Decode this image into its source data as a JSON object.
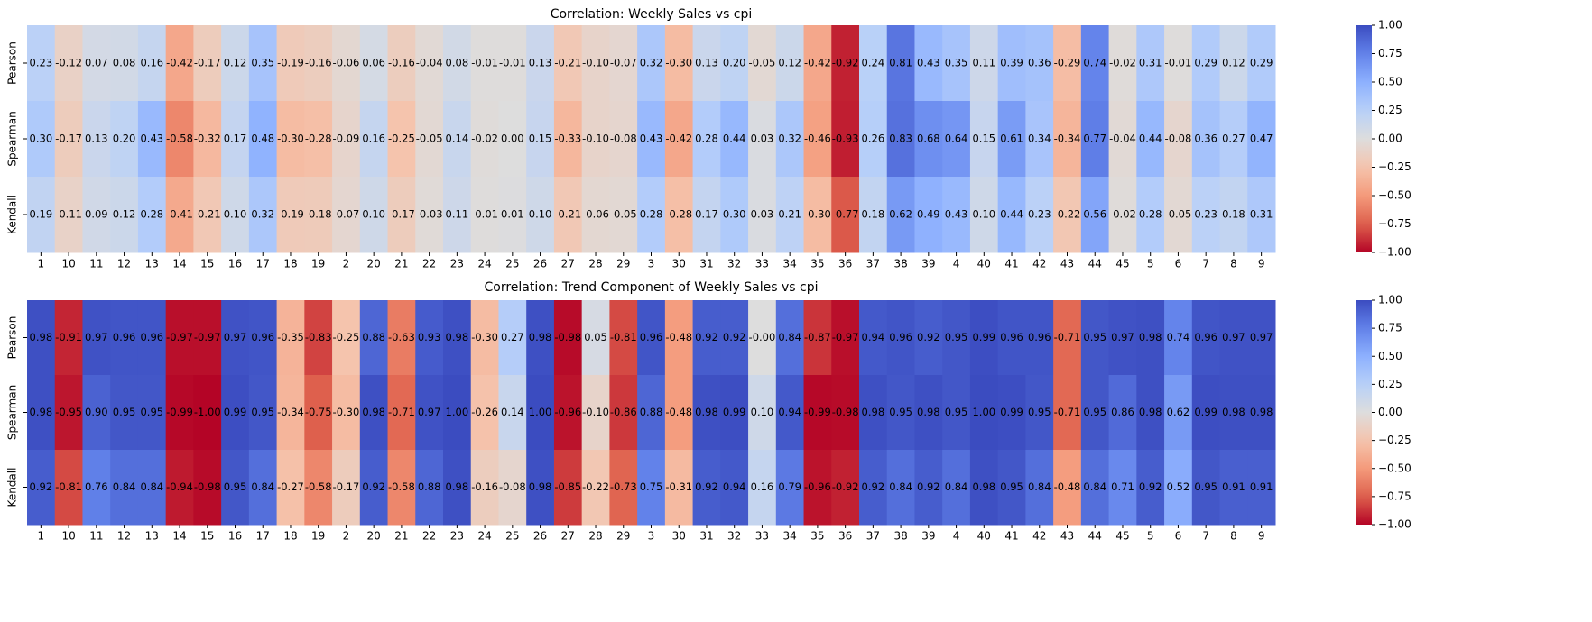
{
  "chart_data": [
    {
      "type": "heatmap",
      "title": "Correlation: Weekly Sales vs cpi",
      "colormap": "coolwarm_r",
      "x": [
        "1",
        "10",
        "11",
        "12",
        "13",
        "14",
        "15",
        "16",
        "17",
        "18",
        "19",
        "2",
        "20",
        "21",
        "22",
        "23",
        "24",
        "25",
        "26",
        "27",
        "28",
        "29",
        "3",
        "30",
        "31",
        "32",
        "33",
        "34",
        "35",
        "36",
        "37",
        "38",
        "39",
        "4",
        "40",
        "41",
        "42",
        "43",
        "44",
        "45",
        "5",
        "6",
        "7",
        "8",
        "9"
      ],
      "y": [
        "Pearson",
        "Spearman",
        "Kendall"
      ],
      "values": [
        [
          0.23,
          -0.12,
          0.07,
          0.08,
          0.16,
          -0.42,
          -0.17,
          0.12,
          0.35,
          -0.19,
          -0.16,
          -0.06,
          0.06,
          -0.16,
          -0.04,
          0.08,
          -0.01,
          -0.01,
          0.13,
          -0.21,
          -0.1,
          -0.07,
          0.32,
          -0.3,
          0.13,
          0.2,
          -0.05,
          0.12,
          -0.42,
          -0.92,
          0.24,
          0.81,
          0.43,
          0.35,
          0.11,
          0.39,
          0.36,
          -0.29,
          0.74,
          -0.02,
          0.31,
          -0.01,
          0.29,
          0.12,
          0.29
        ],
        [
          0.3,
          -0.17,
          0.13,
          0.2,
          0.43,
          -0.58,
          -0.32,
          0.17,
          0.48,
          -0.3,
          -0.28,
          -0.09,
          0.16,
          -0.25,
          -0.05,
          0.14,
          -0.02,
          0.0,
          0.15,
          -0.33,
          -0.1,
          -0.08,
          0.43,
          -0.42,
          0.28,
          0.44,
          0.03,
          0.32,
          -0.46,
          -0.93,
          0.26,
          0.83,
          0.68,
          0.64,
          0.15,
          0.61,
          0.34,
          -0.34,
          0.77,
          -0.04,
          0.44,
          -0.08,
          0.36,
          0.27,
          0.47
        ],
        [
          0.19,
          -0.11,
          0.09,
          0.12,
          0.28,
          -0.41,
          -0.21,
          0.1,
          0.32,
          -0.19,
          -0.18,
          -0.07,
          0.1,
          -0.17,
          -0.03,
          0.11,
          -0.01,
          0.01,
          0.1,
          -0.21,
          -0.06,
          -0.05,
          0.28,
          -0.28,
          0.17,
          0.3,
          0.03,
          0.21,
          -0.3,
          -0.77,
          0.18,
          0.62,
          0.49,
          0.43,
          0.1,
          0.44,
          0.23,
          -0.22,
          0.56,
          -0.02,
          0.28,
          -0.05,
          0.23,
          0.18,
          0.31
        ]
      ],
      "value_labels": [
        [
          "0.23",
          "-0.12",
          "0.07",
          "0.08",
          "0.16",
          "-0.42",
          "-0.17",
          "0.12",
          "0.35",
          "-0.19",
          "-0.16",
          "-0.06",
          "0.06",
          "-0.16",
          "-0.04",
          "0.08",
          "-0.01",
          "-0.01",
          "0.13",
          "-0.21",
          "-0.10",
          "-0.07",
          "0.32",
          "-0.30",
          "0.13",
          "0.20",
          "-0.05",
          "0.12",
          "-0.42",
          "-0.92",
          "0.24",
          "0.81",
          "0.43",
          "0.35",
          "0.11",
          "0.39",
          "0.36",
          "-0.29",
          "0.74",
          "-0.02",
          "0.31",
          "-0.01",
          "0.29",
          "0.12",
          "0.29"
        ],
        [
          "0.30",
          "-0.17",
          "0.13",
          "0.20",
          "0.43",
          "-0.58",
          "-0.32",
          "0.17",
          "0.48",
          "-0.30",
          "-0.28",
          "-0.09",
          "0.16",
          "-0.25",
          "-0.05",
          "0.14",
          "-0.02",
          "0.00",
          "0.15",
          "-0.33",
          "-0.10",
          "-0.08",
          "0.43",
          "-0.42",
          "0.28",
          "0.44",
          "0.03",
          "0.32",
          "-0.46",
          "-0.93",
          "0.26",
          "0.83",
          "0.68",
          "0.64",
          "0.15",
          "0.61",
          "0.34",
          "-0.34",
          "0.77",
          "-0.04",
          "0.44",
          "-0.08",
          "0.36",
          "0.27",
          "0.47"
        ],
        [
          "0.19",
          "-0.11",
          "0.09",
          "0.12",
          "0.28",
          "-0.41",
          "-0.21",
          "0.10",
          "0.32",
          "-0.19",
          "-0.18",
          "-0.07",
          "0.10",
          "-0.17",
          "-0.03",
          "0.11",
          "-0.01",
          "0.01",
          "0.10",
          "-0.21",
          "-0.06",
          "-0.05",
          "0.28",
          "-0.28",
          "0.17",
          "0.30",
          "0.03",
          "0.21",
          "-0.30",
          "-0.77",
          "0.18",
          "0.62",
          "0.49",
          "0.43",
          "0.10",
          "0.44",
          "0.23",
          "-0.22",
          "0.56",
          "-0.02",
          "0.28",
          "-0.05",
          "0.23",
          "0.18",
          "0.31"
        ]
      ],
      "clim": [
        -1,
        1
      ],
      "cticks": [
        {
          "value": -1,
          "label": "−1.00"
        },
        {
          "value": -0.75,
          "label": "−0.75"
        },
        {
          "value": -0.5,
          "label": "−0.50"
        },
        {
          "value": -0.25,
          "label": "−0.25"
        },
        {
          "value": 0,
          "label": "0.00"
        },
        {
          "value": 0.25,
          "label": "0.25"
        },
        {
          "value": 0.5,
          "label": "0.50"
        },
        {
          "value": 0.75,
          "label": "0.75"
        },
        {
          "value": 1,
          "label": "1.00"
        }
      ]
    },
    {
      "type": "heatmap",
      "title": "Correlation: Trend Component of Weekly Sales vs cpi",
      "colormap": "coolwarm_r",
      "x": [
        "1",
        "10",
        "11",
        "12",
        "13",
        "14",
        "15",
        "16",
        "17",
        "18",
        "19",
        "2",
        "20",
        "21",
        "22",
        "23",
        "24",
        "25",
        "26",
        "27",
        "28",
        "29",
        "3",
        "30",
        "31",
        "32",
        "33",
        "34",
        "35",
        "36",
        "37",
        "38",
        "39",
        "4",
        "40",
        "41",
        "42",
        "43",
        "44",
        "45",
        "5",
        "6",
        "7",
        "8",
        "9"
      ],
      "y": [
        "Pearson",
        "Spearman",
        "Kendall"
      ],
      "values": [
        [
          0.98,
          -0.91,
          0.97,
          0.96,
          0.96,
          -0.97,
          -0.97,
          0.97,
          0.96,
          -0.35,
          -0.83,
          -0.25,
          0.88,
          -0.63,
          0.93,
          0.98,
          -0.3,
          0.27,
          0.98,
          -0.98,
          0.05,
          -0.81,
          0.96,
          -0.48,
          0.92,
          0.92,
          0,
          0.84,
          -0.87,
          -0.97,
          0.94,
          0.96,
          0.92,
          0.95,
          0.99,
          0.96,
          0.96,
          -0.71,
          0.95,
          0.97,
          0.98,
          0.74,
          0.96,
          0.97,
          0.97
        ],
        [
          0.98,
          -0.95,
          0.9,
          0.95,
          0.95,
          -0.99,
          -1.0,
          0.99,
          0.95,
          -0.34,
          -0.75,
          -0.3,
          0.98,
          -0.71,
          0.97,
          1.0,
          -0.26,
          0.14,
          1.0,
          -0.96,
          -0.1,
          -0.86,
          0.88,
          -0.48,
          0.98,
          0.99,
          0.1,
          0.94,
          -0.99,
          -0.98,
          0.98,
          0.95,
          0.98,
          0.95,
          1.0,
          0.99,
          0.95,
          -0.71,
          0.95,
          0.86,
          0.98,
          0.62,
          0.99,
          0.98,
          0.98
        ],
        [
          0.92,
          -0.81,
          0.76,
          0.84,
          0.84,
          -0.94,
          -0.98,
          0.95,
          0.84,
          -0.27,
          -0.58,
          -0.17,
          0.92,
          -0.58,
          0.88,
          0.98,
          -0.16,
          -0.08,
          0.98,
          -0.85,
          -0.22,
          -0.73,
          0.75,
          -0.31,
          0.92,
          0.94,
          0.16,
          0.79,
          -0.96,
          -0.92,
          0.92,
          0.84,
          0.92,
          0.84,
          0.98,
          0.95,
          0.84,
          -0.48,
          0.84,
          0.71,
          0.92,
          0.52,
          0.95,
          0.91,
          0.91
        ]
      ],
      "value_labels": [
        [
          "0.98",
          "-0.91",
          "0.97",
          "0.96",
          "0.96",
          "-0.97",
          "-0.97",
          "0.97",
          "0.96",
          "-0.35",
          "-0.83",
          "-0.25",
          "0.88",
          "-0.63",
          "0.93",
          "0.98",
          "-0.30",
          "0.27",
          "0.98",
          "-0.98",
          "0.05",
          "-0.81",
          "0.96",
          "-0.48",
          "0.92",
          "0.92",
          "-0.00",
          "0.84",
          "-0.87",
          "-0.97",
          "0.94",
          "0.96",
          "0.92",
          "0.95",
          "0.99",
          "0.96",
          "0.96",
          "-0.71",
          "0.95",
          "0.97",
          "0.98",
          "0.74",
          "0.96",
          "0.97",
          "0.97"
        ],
        [
          "0.98",
          "-0.95",
          "0.90",
          "0.95",
          "0.95",
          "-0.99",
          "-1.00",
          "0.99",
          "0.95",
          "-0.34",
          "-0.75",
          "-0.30",
          "0.98",
          "-0.71",
          "0.97",
          "1.00",
          "-0.26",
          "0.14",
          "1.00",
          "-0.96",
          "-0.10",
          "-0.86",
          "0.88",
          "-0.48",
          "0.98",
          "0.99",
          "0.10",
          "0.94",
          "-0.99",
          "-0.98",
          "0.98",
          "0.95",
          "0.98",
          "0.95",
          "1.00",
          "0.99",
          "0.95",
          "-0.71",
          "0.95",
          "0.86",
          "0.98",
          "0.62",
          "0.99",
          "0.98",
          "0.98"
        ],
        [
          "0.92",
          "-0.81",
          "0.76",
          "0.84",
          "0.84",
          "-0.94",
          "-0.98",
          "0.95",
          "0.84",
          "-0.27",
          "-0.58",
          "-0.17",
          "0.92",
          "-0.58",
          "0.88",
          "0.98",
          "-0.16",
          "-0.08",
          "0.98",
          "-0.85",
          "-0.22",
          "-0.73",
          "0.75",
          "-0.31",
          "0.92",
          "0.94",
          "0.16",
          "0.79",
          "-0.96",
          "-0.92",
          "0.92",
          "0.84",
          "0.92",
          "0.84",
          "0.98",
          "0.95",
          "0.84",
          "-0.48",
          "0.84",
          "0.71",
          "0.92",
          "0.52",
          "0.95",
          "0.91",
          "0.91"
        ]
      ],
      "clim": [
        -1,
        1
      ],
      "cticks": [
        {
          "value": -1,
          "label": "−1.00"
        },
        {
          "value": -0.75,
          "label": "−0.75"
        },
        {
          "value": -0.5,
          "label": "−0.50"
        },
        {
          "value": -0.25,
          "label": "−0.25"
        },
        {
          "value": 0,
          "label": "0.00"
        },
        {
          "value": 0.25,
          "label": "0.25"
        },
        {
          "value": 0.5,
          "label": "0.50"
        },
        {
          "value": 0.75,
          "label": "0.75"
        },
        {
          "value": 1,
          "label": "1.00"
        }
      ]
    }
  ]
}
